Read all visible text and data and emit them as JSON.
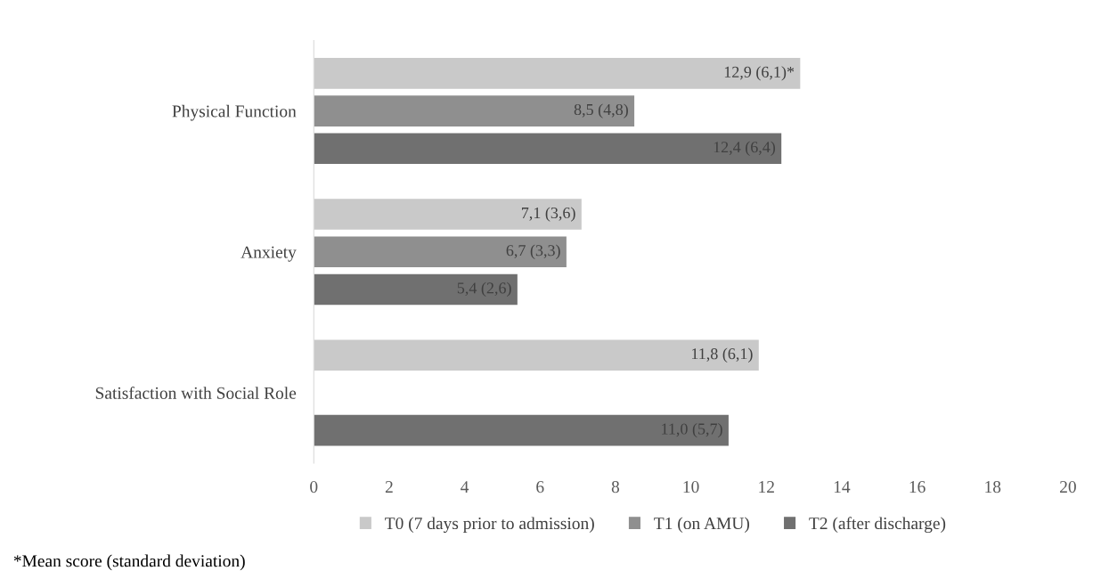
{
  "chart_data": {
    "type": "bar",
    "orientation": "horizontal",
    "categories": [
      "Physical Function",
      "Anxiety",
      "Satisfaction with Social Role"
    ],
    "series": [
      {
        "name": "T0 (7 days prior to admission)",
        "color": "#c9c9c9",
        "values": [
          12.9,
          7.1,
          11.8
        ],
        "value_labels": [
          "12,9 (6,1)*",
          "7,1 (3,6)",
          "11,8 (6,1)"
        ]
      },
      {
        "name": "T1 (on AMU)",
        "color": "#8f8f8f",
        "values": [
          8.5,
          6.7,
          null
        ],
        "value_labels": [
          "8,5 (4,8)",
          "6,7 (3,3)",
          null
        ]
      },
      {
        "name": "T2 (after discharge)",
        "color": "#707070",
        "values": [
          12.4,
          5.4,
          11.0
        ],
        "value_labels": [
          "12,4 (6,4)",
          "5,4 (2,6)",
          "11,0 (5,7)"
        ]
      }
    ],
    "xlim": [
      0,
      20
    ],
    "xticks": [
      0,
      2,
      4,
      6,
      8,
      10,
      12,
      14,
      16,
      18,
      20
    ],
    "grid": false,
    "legend": "bottom",
    "annotations": [
      "*Mean score (standard deviation)"
    ]
  }
}
